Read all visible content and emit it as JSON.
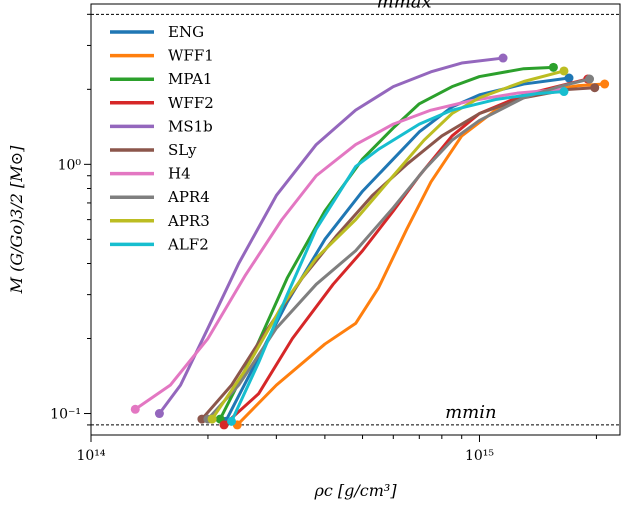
{
  "chart_data": {
    "type": "line",
    "xlabel": "ρc [g/cm³]",
    "ylabel": "M (G/Go)3/2 [M⊙]",
    "xscale": "log",
    "yscale": "log",
    "xlim": [
      100000000000000.0,
      2300000000000000.0
    ],
    "ylim": [
      0.082,
      4.4
    ],
    "grid": false,
    "legend": "top-left",
    "x_ticks": [
      {
        "value": 100000000000000.0,
        "label": "10¹⁴"
      },
      {
        "value": 1000000000000000.0,
        "label": "10¹⁵"
      }
    ],
    "y_ticks": [
      {
        "value": 0.1,
        "label": "10⁻¹"
      },
      {
        "value": 1,
        "label": "10⁰"
      }
    ],
    "annotations": [
      {
        "text": "mmax",
        "y": 4.0,
        "x": 640000000000000.0
      },
      {
        "text": "mmin",
        "y": 0.09,
        "x": 950000000000000.0
      }
    ],
    "series": [
      {
        "name": "ENG",
        "color": "#1f77b4",
        "points": [
          [
            222000000000000.0,
            0.093
          ],
          [
            260000000000000.0,
            0.15
          ],
          [
            320000000000000.0,
            0.28
          ],
          [
            400000000000000.0,
            0.5
          ],
          [
            500000000000000.0,
            0.78
          ],
          [
            600000000000000.0,
            1.05
          ],
          [
            700000000000000.0,
            1.35
          ],
          [
            850000000000000.0,
            1.7
          ],
          [
            1000000000000000.0,
            1.9
          ],
          [
            1300000000000000.0,
            2.1
          ],
          [
            1700000000000000.0,
            2.22
          ]
        ]
      },
      {
        "name": "WFF1",
        "color": "#ff7f0e",
        "points": [
          [
            238000000000000.0,
            0.09
          ],
          [
            300000000000000.0,
            0.13
          ],
          [
            400000000000000.0,
            0.19
          ],
          [
            480000000000000.0,
            0.23
          ],
          [
            550000000000000.0,
            0.32
          ],
          [
            650000000000000.0,
            0.55
          ],
          [
            750000000000000.0,
            0.85
          ],
          [
            900000000000000.0,
            1.3
          ],
          [
            1100000000000000.0,
            1.65
          ],
          [
            1400000000000000.0,
            1.95
          ],
          [
            1800000000000000.0,
            2.07
          ],
          [
            2100000000000000.0,
            2.1
          ]
        ]
      },
      {
        "name": "MPA1",
        "color": "#2ca02c",
        "points": [
          [
            215000000000000.0,
            0.095
          ],
          [
            260000000000000.0,
            0.17
          ],
          [
            320000000000000.0,
            0.35
          ],
          [
            400000000000000.0,
            0.65
          ],
          [
            500000000000000.0,
            1.05
          ],
          [
            600000000000000.0,
            1.4
          ],
          [
            700000000000000.0,
            1.75
          ],
          [
            850000000000000.0,
            2.05
          ],
          [
            1000000000000000.0,
            2.25
          ],
          [
            1300000000000000.0,
            2.42
          ],
          [
            1550000000000000.0,
            2.45
          ]
        ]
      },
      {
        "name": "WFF2",
        "color": "#d62728",
        "points": [
          [
            220000000000000.0,
            0.09
          ],
          [
            270000000000000.0,
            0.12
          ],
          [
            330000000000000.0,
            0.2
          ],
          [
            420000000000000.0,
            0.33
          ],
          [
            500000000000000.0,
            0.45
          ],
          [
            600000000000000.0,
            0.65
          ],
          [
            700000000000000.0,
            0.9
          ],
          [
            850000000000000.0,
            1.3
          ],
          [
            1000000000000000.0,
            1.6
          ],
          [
            1300000000000000.0,
            1.9
          ],
          [
            1900000000000000.0,
            2.2
          ]
        ]
      },
      {
        "name": "MS1b",
        "color": "#9467bd",
        "points": [
          [
            150000000000000.0,
            0.1
          ],
          [
            170000000000000.0,
            0.13
          ],
          [
            200000000000000.0,
            0.22
          ],
          [
            240000000000000.0,
            0.4
          ],
          [
            300000000000000.0,
            0.75
          ],
          [
            380000000000000.0,
            1.2
          ],
          [
            480000000000000.0,
            1.65
          ],
          [
            600000000000000.0,
            2.05
          ],
          [
            750000000000000.0,
            2.35
          ],
          [
            900000000000000.0,
            2.55
          ],
          [
            1150000000000000.0,
            2.67
          ]
        ]
      },
      {
        "name": "SLy",
        "color": "#8c564b",
        "points": [
          [
            193000000000000.0,
            0.095
          ],
          [
            230000000000000.0,
            0.13
          ],
          [
            280000000000000.0,
            0.21
          ],
          [
            350000000000000.0,
            0.35
          ],
          [
            430000000000000.0,
            0.52
          ],
          [
            530000000000000.0,
            0.75
          ],
          [
            650000000000000.0,
            1.0
          ],
          [
            800000000000000.0,
            1.3
          ],
          [
            1000000000000000.0,
            1.6
          ],
          [
            1300000000000000.0,
            1.85
          ],
          [
            1700000000000000.0,
            2.0
          ],
          [
            1980000000000000.0,
            2.03
          ]
        ]
      },
      {
        "name": "H4",
        "color": "#e377c2",
        "points": [
          [
            130000000000000.0,
            0.104
          ],
          [
            160000000000000.0,
            0.13
          ],
          [
            200000000000000.0,
            0.2
          ],
          [
            250000000000000.0,
            0.36
          ],
          [
            310000000000000.0,
            0.6
          ],
          [
            380000000000000.0,
            0.9
          ],
          [
            480000000000000.0,
            1.2
          ],
          [
            600000000000000.0,
            1.45
          ],
          [
            750000000000000.0,
            1.65
          ],
          [
            950000000000000.0,
            1.8
          ],
          [
            1250000000000000.0,
            1.93
          ],
          [
            1620000000000000.0,
            2.0
          ]
        ]
      },
      {
        "name": "APR4",
        "color": "#7f7f7f",
        "points": [
          [
            200000000000000.0,
            0.095
          ],
          [
            240000000000000.0,
            0.13
          ],
          [
            300000000000000.0,
            0.22
          ],
          [
            380000000000000.0,
            0.33
          ],
          [
            480000000000000.0,
            0.45
          ],
          [
            600000000000000.0,
            0.67
          ],
          [
            720000000000000.0,
            0.95
          ],
          [
            850000000000000.0,
            1.25
          ],
          [
            1000000000000000.0,
            1.5
          ],
          [
            1300000000000000.0,
            1.85
          ],
          [
            1600000000000000.0,
            2.05
          ],
          [
            1920000000000000.0,
            2.2
          ]
        ]
      },
      {
        "name": "APR3",
        "color": "#bcbd22",
        "points": [
          [
            205000000000000.0,
            0.095
          ],
          [
            250000000000000.0,
            0.15
          ],
          [
            310000000000000.0,
            0.27
          ],
          [
            380000000000000.0,
            0.42
          ],
          [
            480000000000000.0,
            0.6
          ],
          [
            600000000000000.0,
            0.9
          ],
          [
            720000000000000.0,
            1.25
          ],
          [
            850000000000000.0,
            1.6
          ],
          [
            1000000000000000.0,
            1.85
          ],
          [
            1300000000000000.0,
            2.15
          ],
          [
            1650000000000000.0,
            2.37
          ]
        ]
      },
      {
        "name": "ALF2",
        "color": "#17becf",
        "points": [
          [
            230000000000000.0,
            0.093
          ],
          [
            270000000000000.0,
            0.16
          ],
          [
            320000000000000.0,
            0.3
          ],
          [
            380000000000000.0,
            0.55
          ],
          [
            480000000000000.0,
            0.98
          ],
          [
            550000000000000.0,
            1.15
          ],
          [
            700000000000000.0,
            1.45
          ],
          [
            850000000000000.0,
            1.65
          ],
          [
            1100000000000000.0,
            1.82
          ],
          [
            1400000000000000.0,
            1.92
          ],
          [
            1650000000000000.0,
            1.96
          ]
        ]
      }
    ]
  }
}
